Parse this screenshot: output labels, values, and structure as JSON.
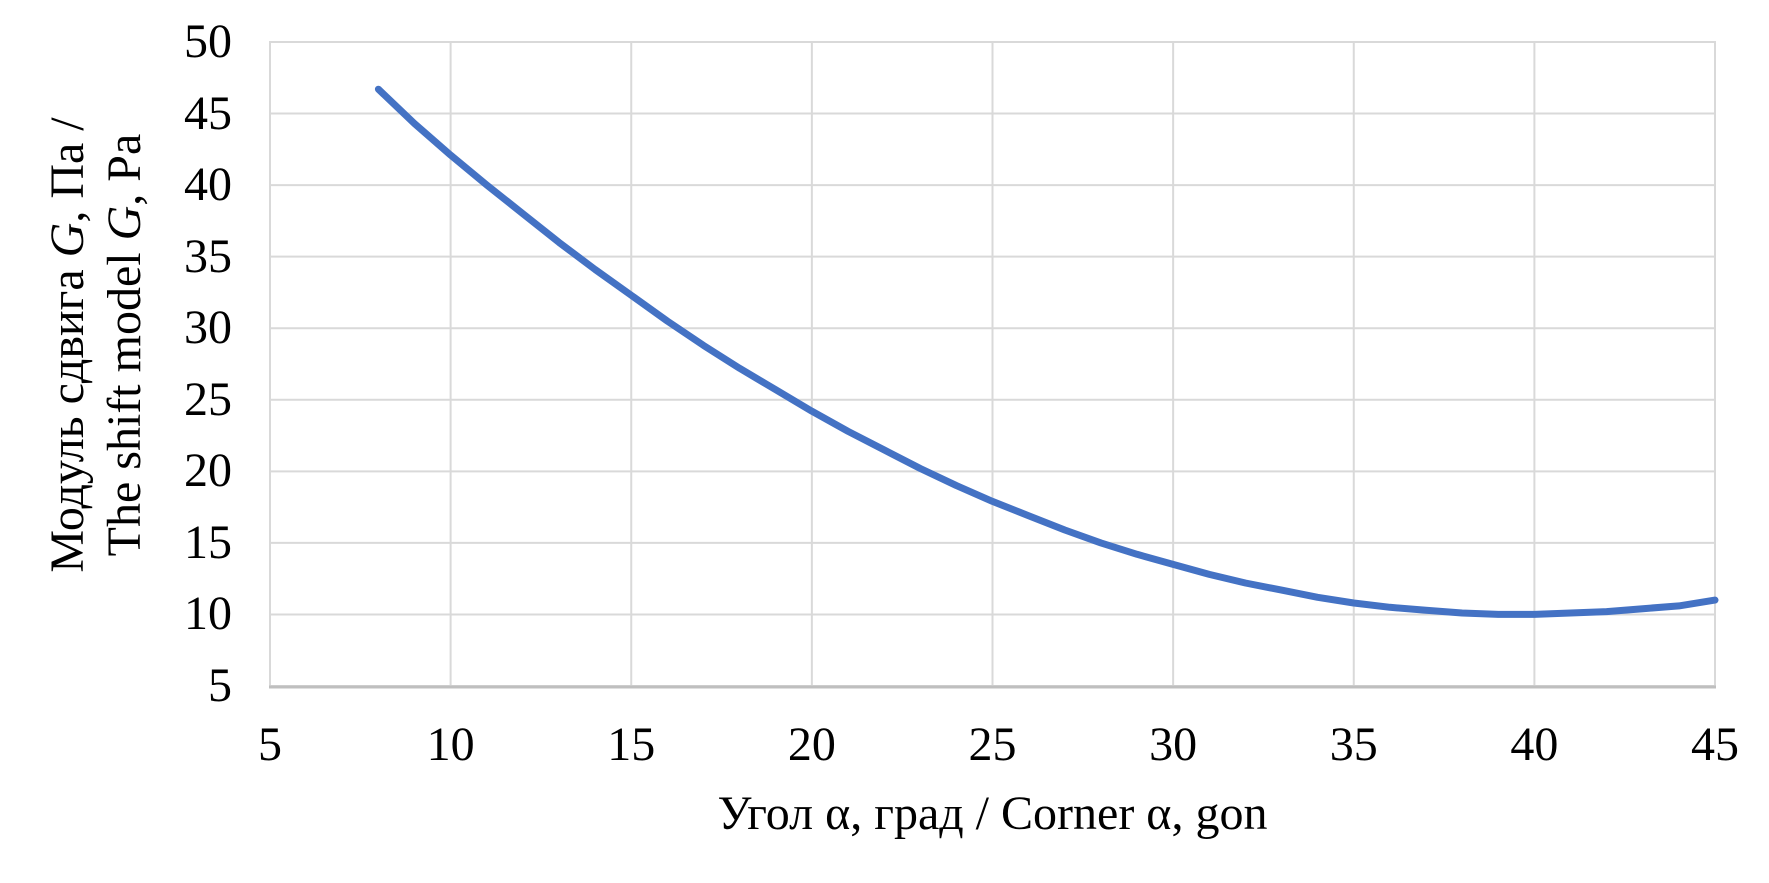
{
  "chart_data": {
    "type": "line",
    "title": "",
    "xlabel": "Угол α, град / Corner α, gon",
    "ylabel": "Модуль сдвига G, Па / The shift model G, Pa",
    "ylabel_lines": [
      {
        "parts": [
          {
            "text": "Модуль сдвига "
          },
          {
            "text": "G",
            "italic": true
          },
          {
            "text": ", Па /"
          }
        ]
      },
      {
        "parts": [
          {
            "text": "The shift model "
          },
          {
            "text": "G",
            "italic": true
          },
          {
            "text": ", Pa"
          }
        ]
      }
    ],
    "xlim": [
      5,
      45
    ],
    "ylim": [
      5,
      50
    ],
    "xticks": [
      5,
      10,
      15,
      20,
      25,
      30,
      35,
      40,
      45
    ],
    "yticks": [
      5,
      10,
      15,
      20,
      25,
      30,
      35,
      40,
      45,
      50
    ],
    "grid": true,
    "legend": false,
    "series": [
      {
        "color": "#4472C4",
        "stroke_width": 7,
        "points": [
          [
            8,
            46.7
          ],
          [
            9,
            44.3
          ],
          [
            10,
            42.1
          ],
          [
            11,
            40.0
          ],
          [
            12,
            38.0
          ],
          [
            13,
            36.0
          ],
          [
            14,
            34.1
          ],
          [
            15,
            32.3
          ],
          [
            16,
            30.5
          ],
          [
            17,
            28.8
          ],
          [
            18,
            27.2
          ],
          [
            19,
            25.7
          ],
          [
            20,
            24.2
          ],
          [
            21,
            22.8
          ],
          [
            22,
            21.5
          ],
          [
            23,
            20.2
          ],
          [
            24,
            19.0
          ],
          [
            25,
            17.9
          ],
          [
            26,
            16.9
          ],
          [
            27,
            15.9
          ],
          [
            28,
            15.0
          ],
          [
            29,
            14.2
          ],
          [
            30,
            13.5
          ],
          [
            31,
            12.8
          ],
          [
            32,
            12.2
          ],
          [
            33,
            11.7
          ],
          [
            34,
            11.2
          ],
          [
            35,
            10.8
          ],
          [
            36,
            10.5
          ],
          [
            37,
            10.3
          ],
          [
            38,
            10.1
          ],
          [
            39,
            10.0
          ],
          [
            40,
            10.0
          ],
          [
            41,
            10.1
          ],
          [
            42,
            10.2
          ],
          [
            43,
            10.4
          ],
          [
            44,
            10.6
          ],
          [
            45,
            11.0
          ]
        ]
      }
    ],
    "colors": {
      "line": "#4472C4",
      "grid": "#D9D9D9",
      "axis_line": "#BFBFBF",
      "text": "#000000",
      "background": "#FFFFFF"
    }
  }
}
